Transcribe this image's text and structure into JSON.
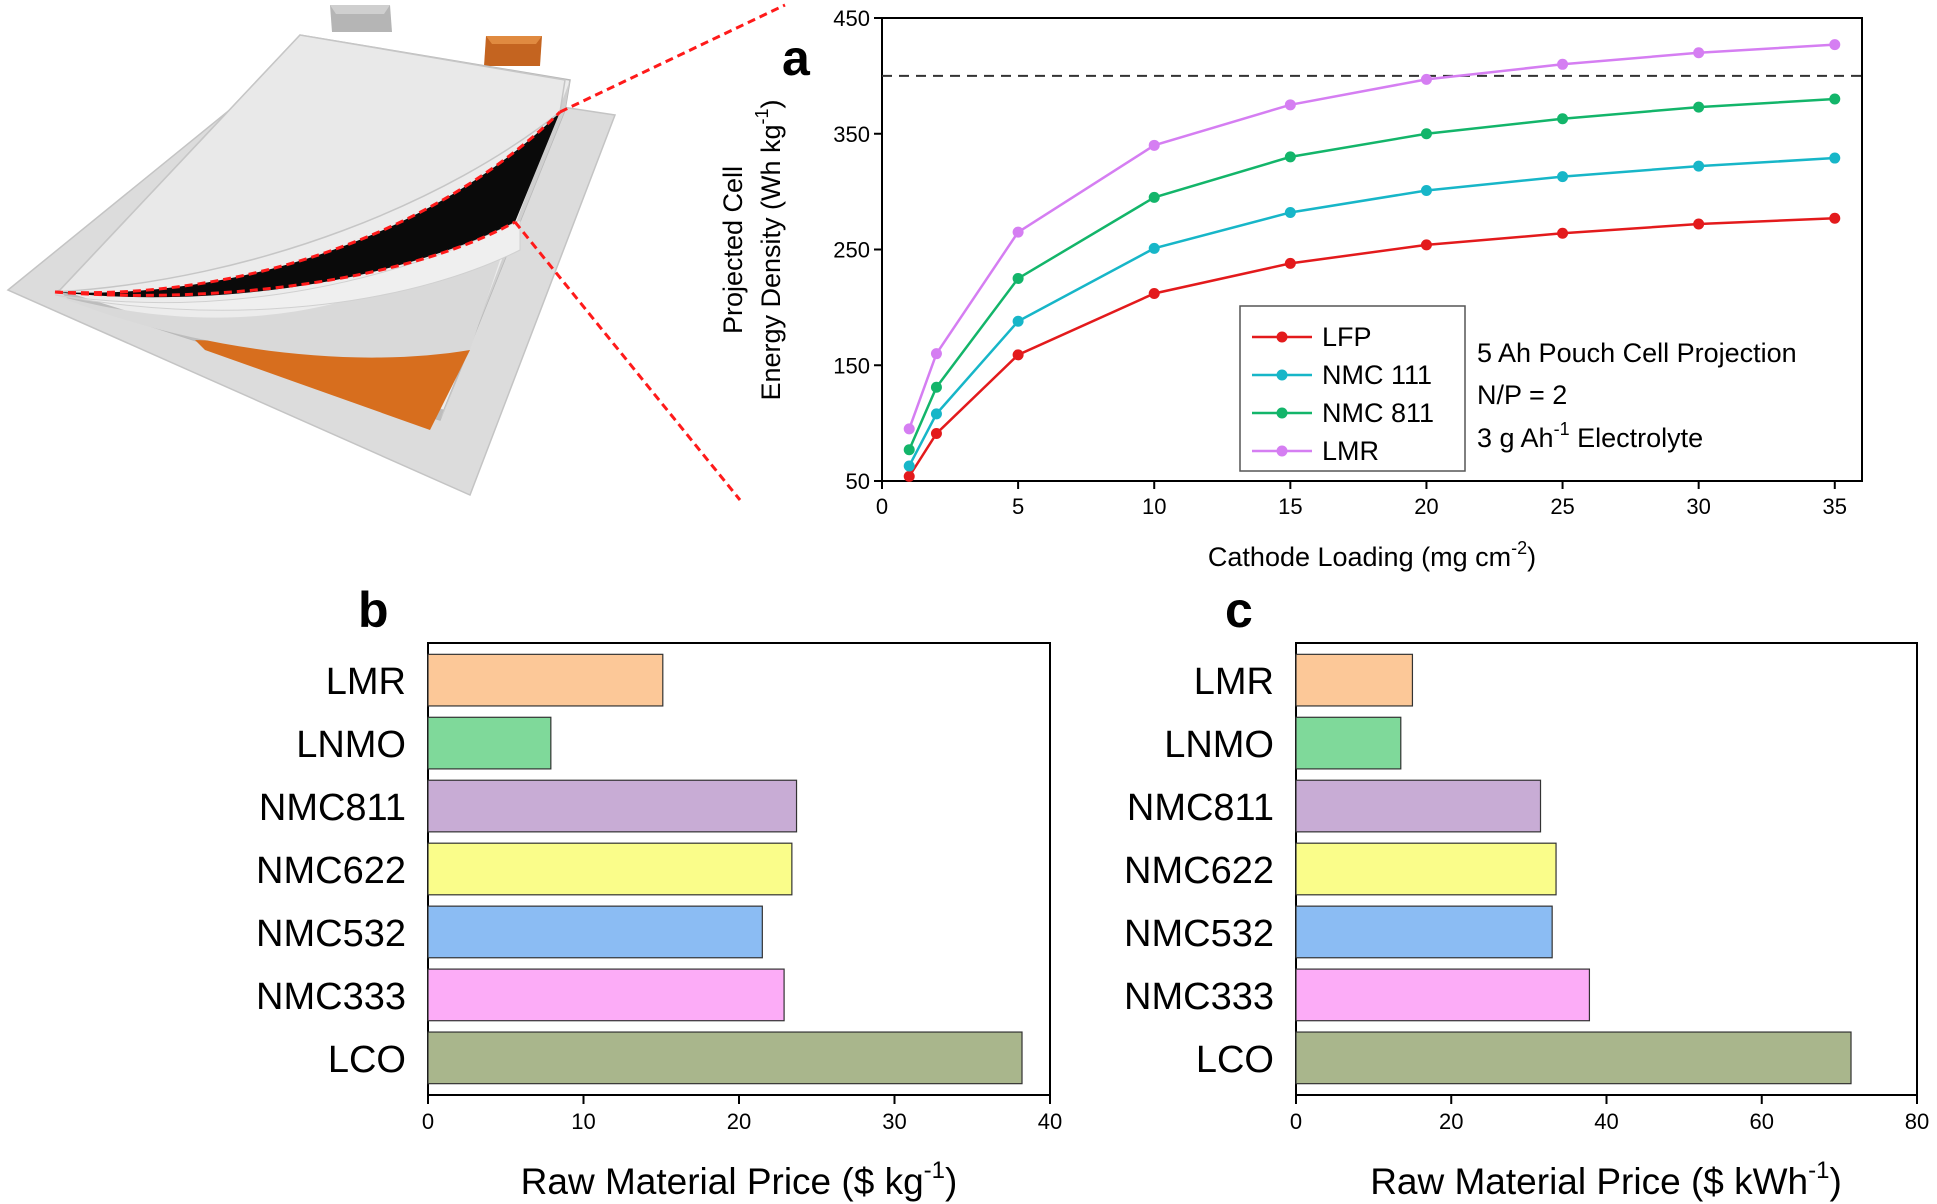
{
  "chart_data": [
    {
      "panel": "a",
      "type": "line",
      "xlabel_main": "Cathode Loading (mg cm",
      "xlabel_sup": "-2",
      "xlabel_tail": ")",
      "ylabel_line1": "Projected Cell",
      "ylabel_line2_main": "Energy Density (Wh kg",
      "ylabel_line2_sup": "-1",
      "ylabel_line2_tail": ")",
      "xlim": [
        0,
        36
      ],
      "ylim": [
        50,
        450
      ],
      "xticks": [
        0,
        5,
        10,
        15,
        20,
        25,
        30,
        35
      ],
      "yticks": [
        50,
        150,
        250,
        350,
        450
      ],
      "reference_line_y": 400,
      "x": [
        1,
        2,
        5,
        10,
        15,
        20,
        25,
        30,
        35
      ],
      "series": [
        {
          "name": "LFP",
          "color": "#e31a1c",
          "values": [
            54,
            91,
            159,
            212,
            238,
            254,
            264,
            272,
            277
          ]
        },
        {
          "name": "NMC 111",
          "color": "#17b6c8",
          "values": [
            63,
            108,
            188,
            251,
            282,
            301,
            313,
            322,
            329
          ]
        },
        {
          "name": "NMC 811",
          "color": "#13b56a",
          "values": [
            77,
            131,
            225,
            295,
            330,
            350,
            363,
            373,
            380
          ]
        },
        {
          "name": "LMR",
          "color": "#d57ef2",
          "values": [
            95,
            160,
            265,
            340,
            375,
            397,
            410,
            420,
            427
          ]
        }
      ],
      "annotations": [
        {
          "text": "5 Ah Pouch Cell Projection"
        },
        {
          "text": "N/P = 2"
        },
        {
          "text_main": "3 g Ah",
          "text_sup": "-1",
          "text_tail": " Electrolyte"
        }
      ],
      "legend_position": "lower-center"
    },
    {
      "panel": "b",
      "type": "bar",
      "orientation": "horizontal",
      "categories": [
        "LMR",
        "LNMO",
        "NMC811",
        "NMC622",
        "NMC532",
        "NMC333",
        "LCO"
      ],
      "values": [
        15.1,
        7.9,
        23.7,
        23.4,
        21.5,
        22.9,
        38.2
      ],
      "colors": [
        "#fcc898",
        "#7fd99a",
        "#c8acd5",
        "#fafd8a",
        "#8bbcf3",
        "#fcacf7",
        "#a9b68c"
      ],
      "xlabel_main": "Raw Material Price ($ kg",
      "xlabel_sup": "-1",
      "xlabel_tail": ")",
      "xlim": [
        0,
        40
      ],
      "xticks": [
        0,
        10,
        20,
        30,
        40
      ]
    },
    {
      "panel": "c",
      "type": "bar",
      "orientation": "horizontal",
      "categories": [
        "LMR",
        "LNMO",
        "NMC811",
        "NMC622",
        "NMC532",
        "NMC333",
        "LCO"
      ],
      "values": [
        15,
        13.5,
        31.5,
        33.5,
        33,
        37.8,
        71.5
      ],
      "colors": [
        "#fcc898",
        "#7fd99a",
        "#c8acd5",
        "#fafd8a",
        "#8bbcf3",
        "#fcacf7",
        "#a9b68c"
      ],
      "xlabel_main": "Raw Material Price ($ kWh",
      "xlabel_sup": "-1",
      "xlabel_tail": ")",
      "xlim": [
        0,
        80
      ],
      "xticks": [
        0,
        20,
        40,
        60,
        80
      ]
    }
  ]
}
